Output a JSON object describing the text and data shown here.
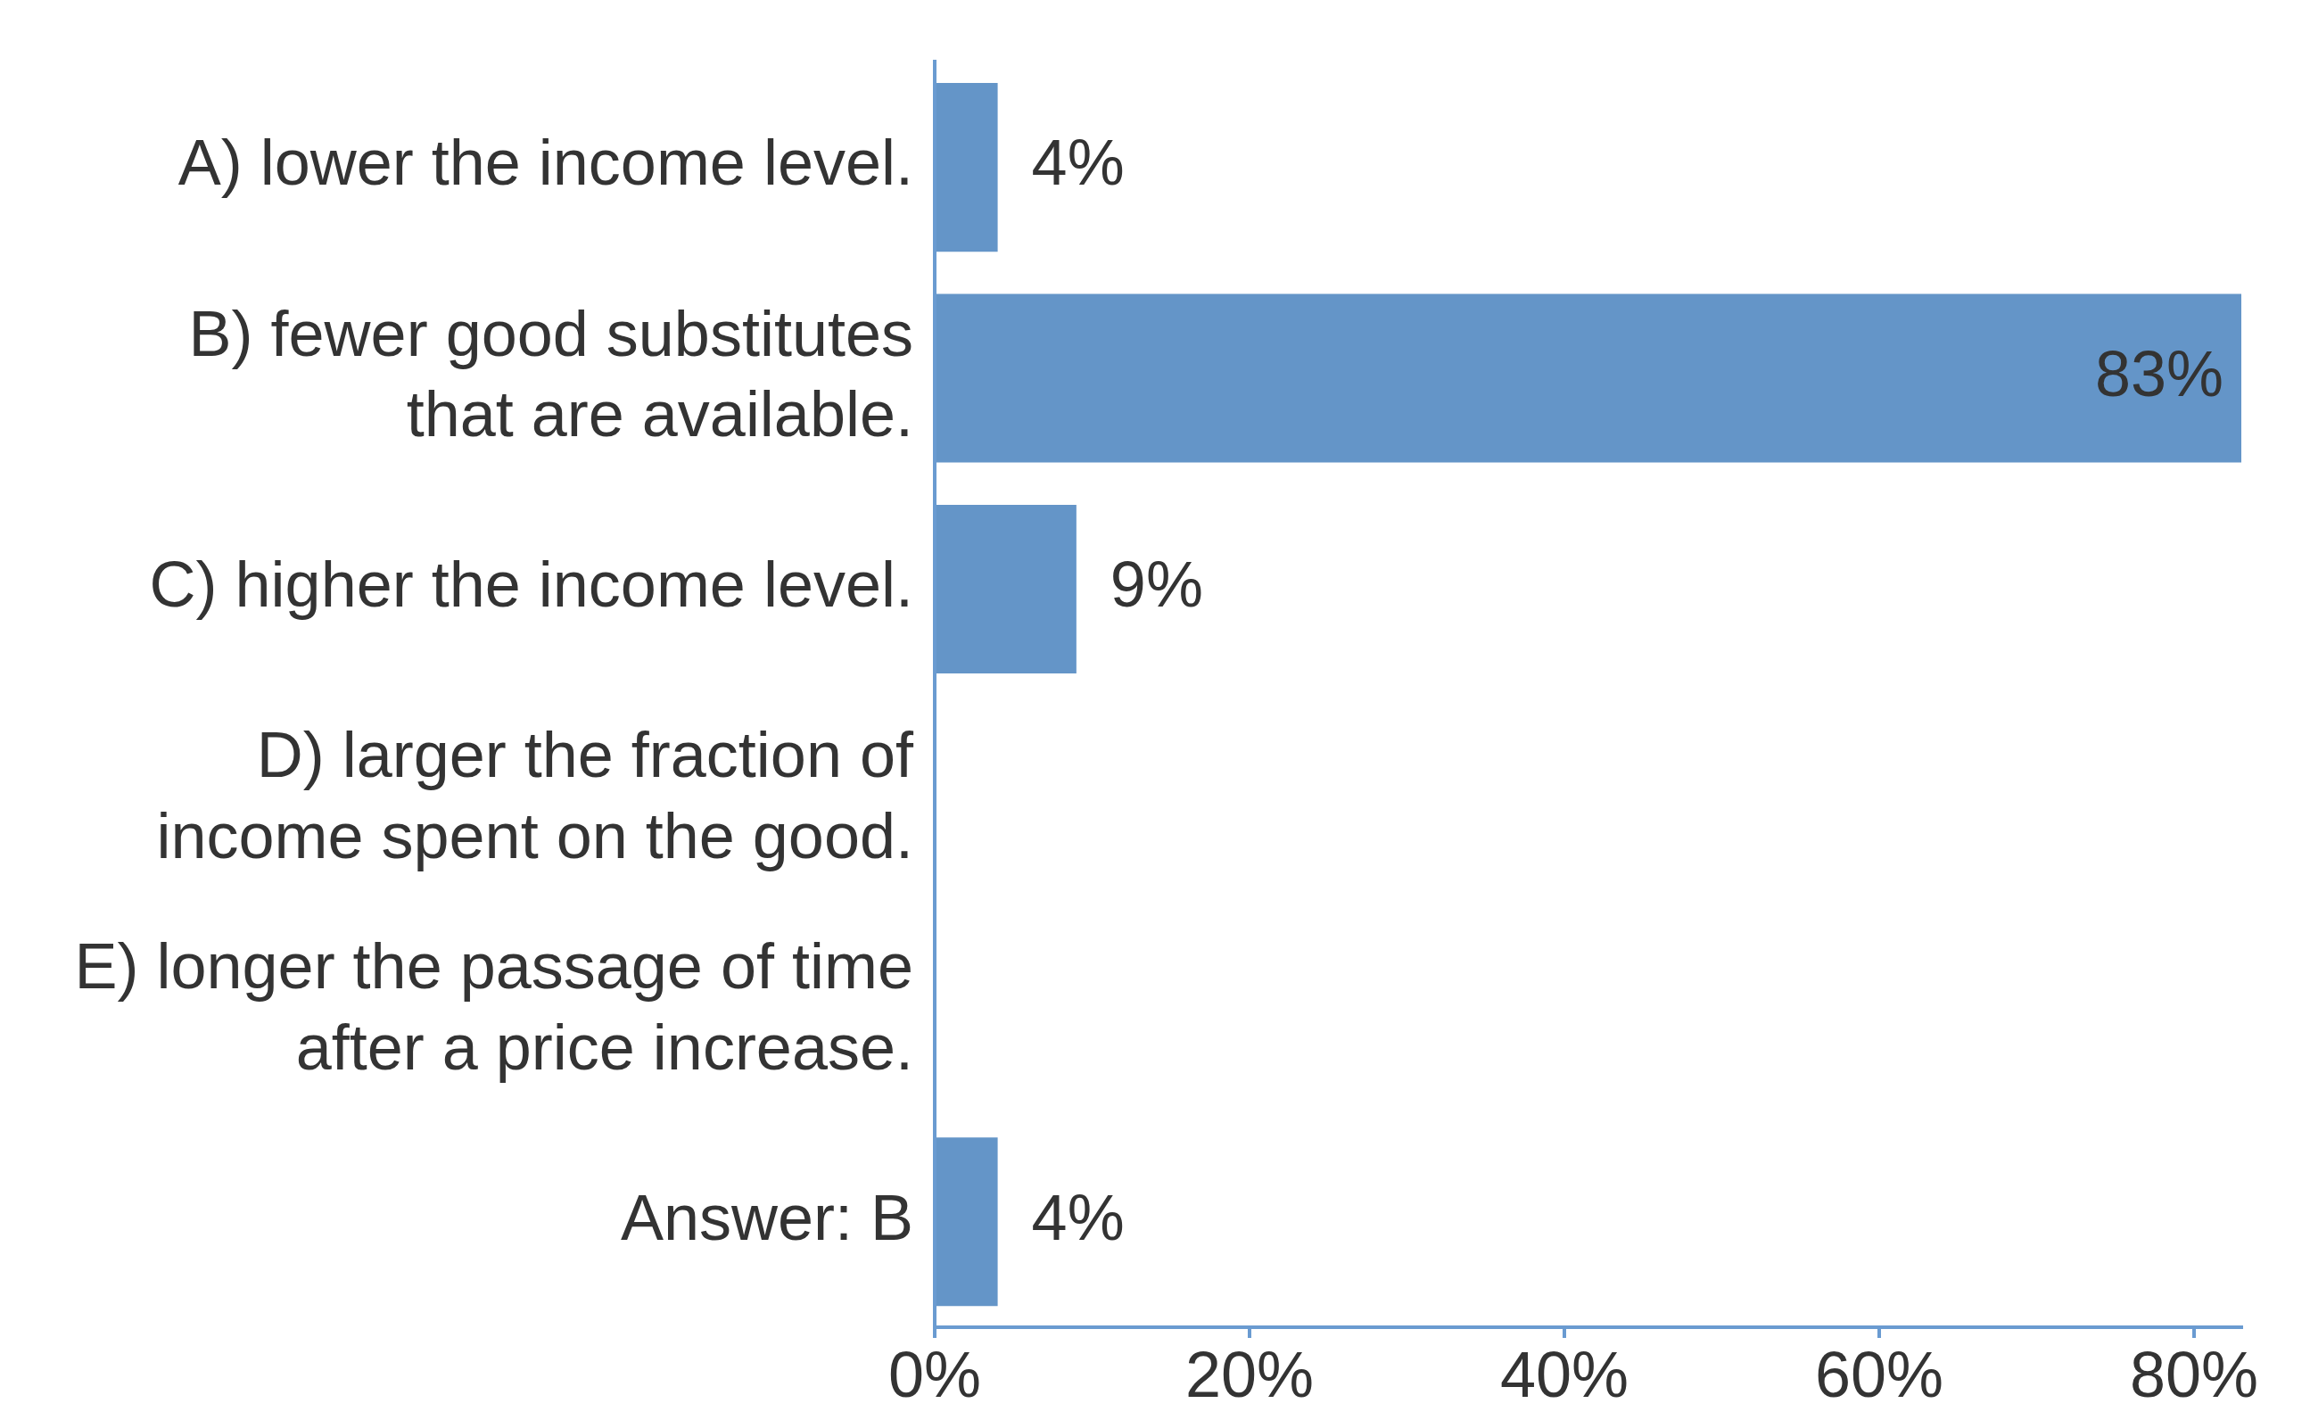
{
  "chart_data": {
    "type": "bar",
    "orientation": "horizontal",
    "categories": [
      "A) lower the income level.",
      "B) fewer good substitutes that are available.",
      "C) higher the income level.",
      "D) larger the fraction of income spent on the good.",
      "E) longer the passage of time after a price increase.",
      "Answer: B"
    ],
    "values": [
      4,
      83,
      9,
      null,
      null,
      4
    ],
    "value_labels": [
      "4%",
      "83%",
      "9%",
      null,
      null,
      "4%"
    ],
    "color": "#6495c8",
    "xlim": [
      0,
      83
    ],
    "xticks": [
      {
        "value": 0,
        "label": "0%"
      },
      {
        "value": 20,
        "label": "20%"
      },
      {
        "value": 40,
        "label": "40%"
      },
      {
        "value": 60,
        "label": "60%"
      },
      {
        "value": 80,
        "label": "80%"
      }
    ]
  }
}
